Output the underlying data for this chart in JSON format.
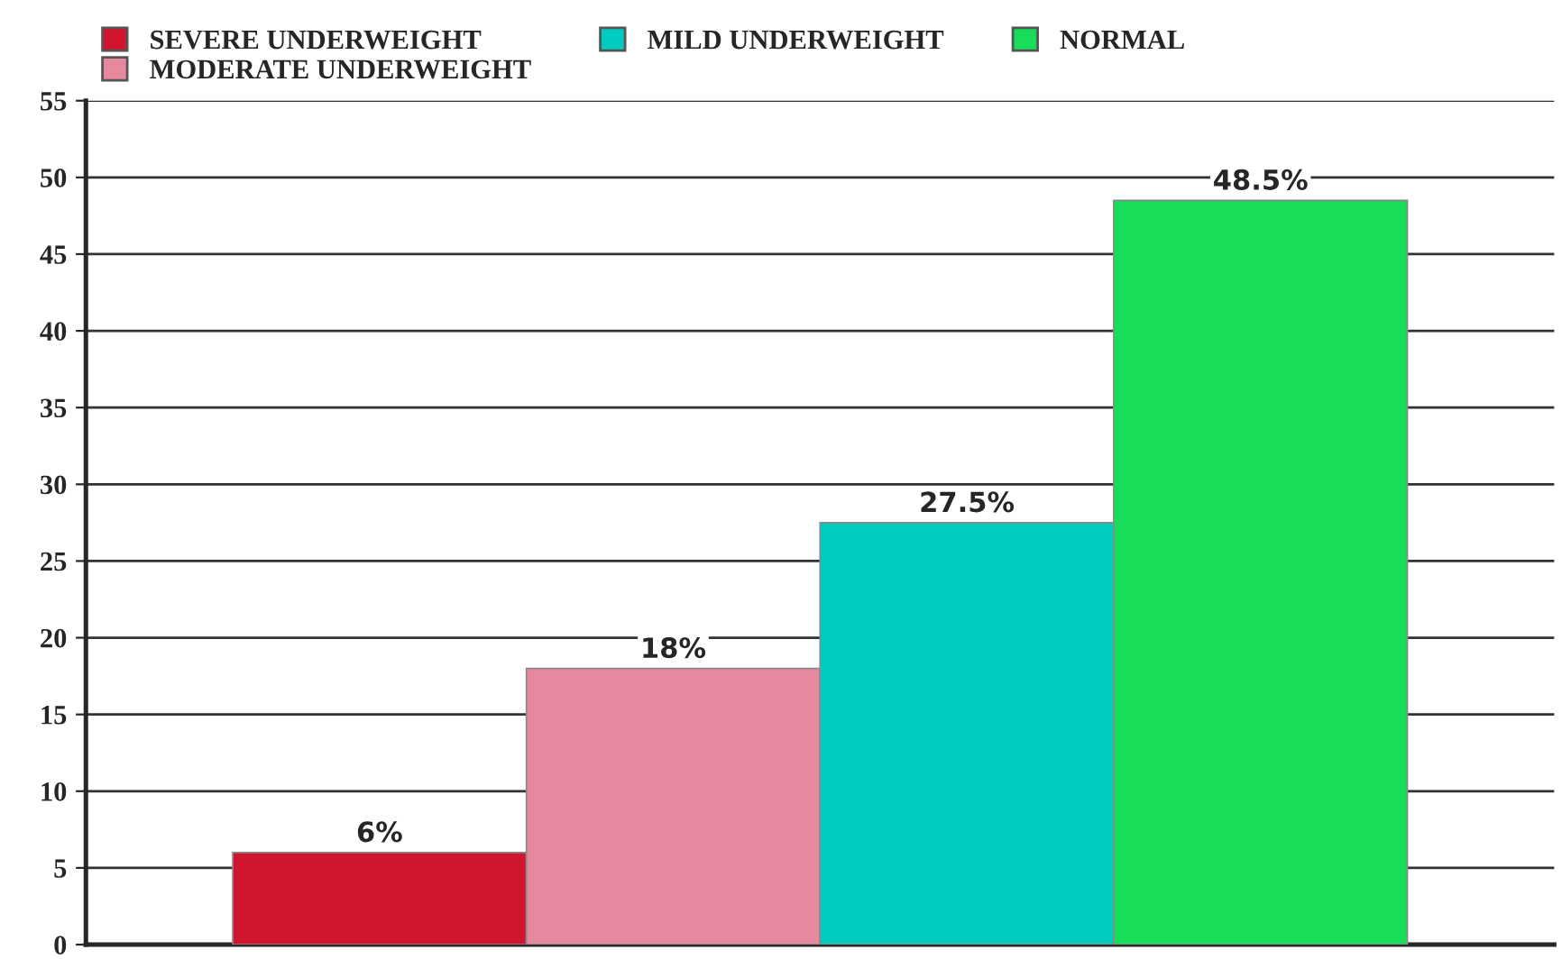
{
  "chart_data": {
    "type": "bar",
    "categories": [
      null
    ],
    "series": [
      {
        "name": "SEVERE UNDERWEIGHT",
        "color": "#d2152e",
        "values": [
          6
        ],
        "value_labels": [
          "6%"
        ]
      },
      {
        "name": "MODERATE UNDERWEIGHT",
        "color": "#e6889e",
        "values": [
          18
        ],
        "value_labels": [
          "18%"
        ]
      },
      {
        "name": "MILD UNDERWEIGHT",
        "color": "#00cbbf",
        "values": [
          27.5
        ],
        "value_labels": [
          "27.5%"
        ]
      },
      {
        "name": "NORMAL",
        "color": "#17dd58",
        "values": [
          48.5
        ],
        "value_labels": [
          "48.5%"
        ]
      }
    ],
    "ylim": [
      0,
      55
    ],
    "yticks": [
      0,
      5,
      10,
      15,
      20,
      25,
      30,
      35,
      40,
      45,
      50,
      55
    ],
    "grid": "y",
    "legend": "top left",
    "tick_labels": "y"
  }
}
